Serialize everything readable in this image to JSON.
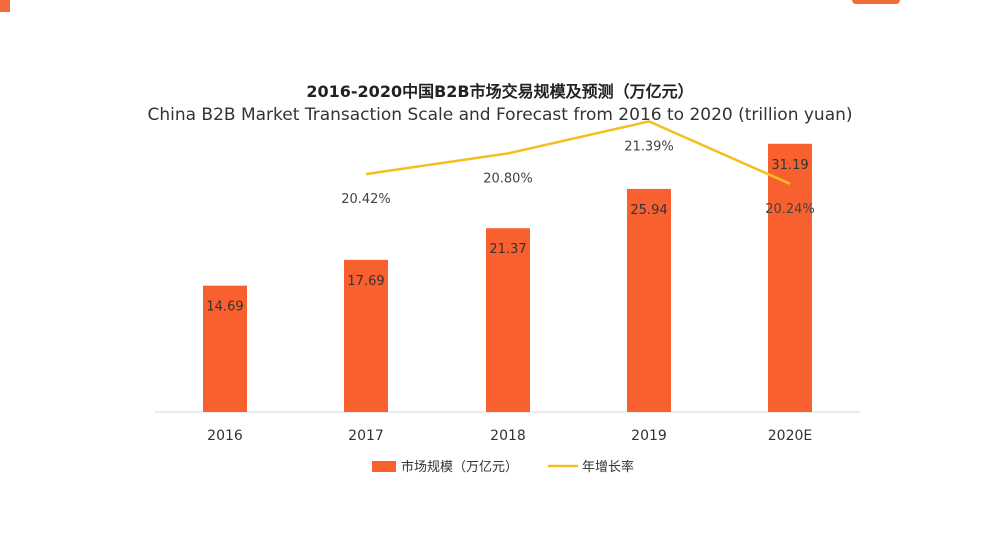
{
  "chart_data": {
    "type": "bar",
    "title": "2016-2020中国B2B市场交易规模及预测（万亿元）",
    "subtitle": "China B2B Market Transaction Scale and Forecast from 2016 to 2020 (trillion yuan)",
    "categories": [
      "2016",
      "2017",
      "2018",
      "2019",
      "2020E"
    ],
    "series": [
      {
        "name": "市场规模（万亿元）",
        "kind": "bar",
        "values": [
          14.69,
          17.69,
          21.37,
          25.94,
          31.19
        ],
        "labels": [
          "14.69",
          "17.69",
          "21.37",
          "25.94",
          "31.19"
        ],
        "color": "#f8612f"
      },
      {
        "name": "年增长率",
        "kind": "line",
        "values": [
          null,
          20.42,
          20.8,
          21.39,
          20.24
        ],
        "labels": [
          "",
          "20.42%",
          "20.80%",
          "21.39%",
          "20.24%"
        ],
        "color": "#f5bd1f"
      }
    ],
    "ylim": [
      0,
      35
    ],
    "y2lim": [
      18.8,
      21.6
    ],
    "legend_position": "bottom",
    "grid": false,
    "xlabel": "",
    "ylabel": ""
  },
  "colors": {
    "axis": "#d9d9d9"
  }
}
